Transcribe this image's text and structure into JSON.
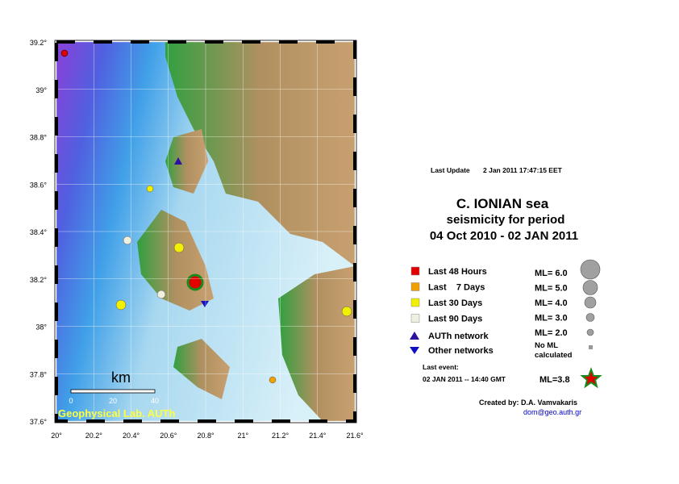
{
  "map": {
    "lat_labels": [
      "39.2°",
      "39°",
      "38.8°",
      "38.6°",
      "38.4°",
      "38.2°",
      "38°",
      "37.8°",
      "37.6°"
    ],
    "lon_labels": [
      "20°",
      "20.2°",
      "20.4°",
      "20.6°",
      "20.8°",
      "21°",
      "21.2°",
      "21.4°",
      "21.6°"
    ],
    "scale": {
      "unit": "km",
      "labels": [
        "0",
        "20",
        "40"
      ]
    },
    "credit": "Geophysical Lab. AUTh"
  },
  "header": {
    "update_label": "Last Update",
    "update_time": "2 Jan 2011 17:47:15 EET",
    "title": "C. IONIAN sea",
    "subtitle": "seismicity for period",
    "period": "04 Oct 2010 - 02 JAN 2011"
  },
  "legend": {
    "periods": [
      {
        "label": "Last 48 Hours",
        "color": "#e00000"
      },
      {
        "label": "Last    7 Days",
        "color": "#f0a000"
      },
      {
        "label": "Last 30 Days",
        "color": "#f0f000"
      },
      {
        "label": "Last 90 Days",
        "color": "#f0f0e0"
      }
    ],
    "networks": [
      {
        "label": "AUTh network",
        "color": "#3010a0"
      },
      {
        "label": "Other networks",
        "color": "#1010c0"
      }
    ],
    "magnitudes": [
      "ML= 6.0",
      "ML= 5.0",
      "ML= 4.0",
      "ML= 3.0",
      "ML= 2.0"
    ],
    "no_ml": [
      "No ML",
      "calculated"
    ]
  },
  "last_event": {
    "label": "Last event:",
    "time": "02 JAN 2011 -- 14:40  GMT",
    "magnitude": "ML=3.8"
  },
  "footer": {
    "author": "Created by: D.A. Vamvakaris",
    "email": "dom@geo.auth.gr"
  }
}
